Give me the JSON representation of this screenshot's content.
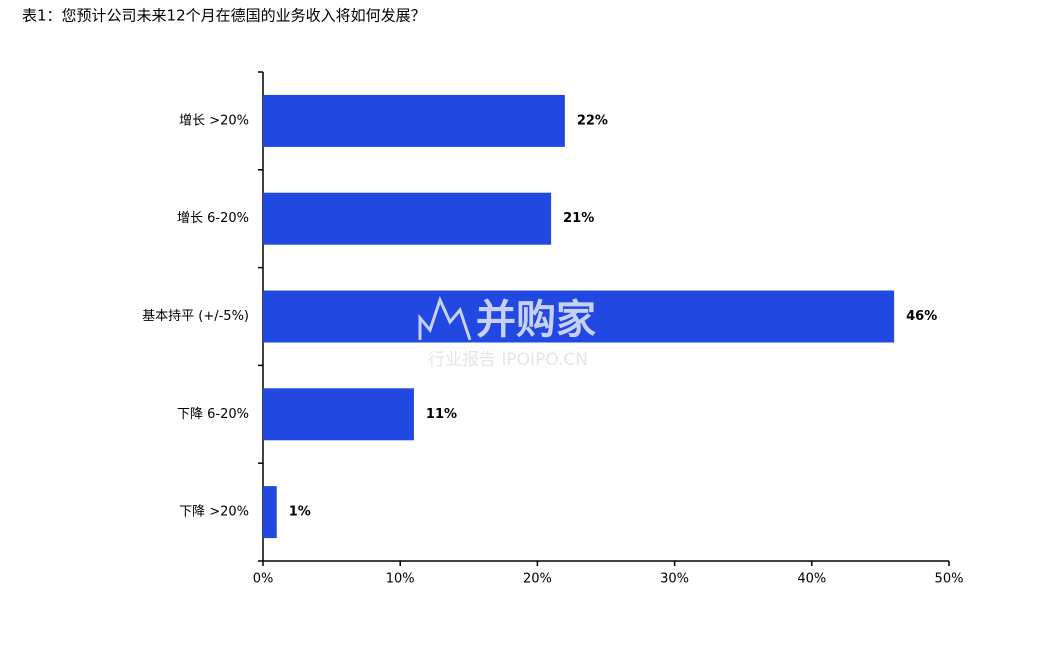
{
  "chart_data": {
    "type": "hbar",
    "title": "表1：您预计公司未来12个月在德国的业务收入将如何发展？",
    "categories": [
      "增长 >20%",
      "增长 6-20%",
      "基本持平 (+/-5%)",
      "下降 6-20%",
      "下降 >20%"
    ],
    "values": [
      22,
      21,
      46,
      11,
      1
    ],
    "value_labels": [
      "22%",
      "21%",
      "46%",
      "11%",
      "1%"
    ],
    "color": "#2148e0",
    "xlim": [
      0,
      50
    ],
    "xticks": [
      {
        "value": 0,
        "label": "0%"
      },
      {
        "value": 10,
        "label": "10%"
      },
      {
        "value": 20,
        "label": "20%"
      },
      {
        "value": 30,
        "label": "30%"
      },
      {
        "value": 40,
        "label": "40%"
      },
      {
        "value": 50,
        "label": "50%"
      }
    ],
    "watermark": {
      "title": "并购家",
      "subtitle": "行业报告 IPOIPO.CN"
    }
  }
}
